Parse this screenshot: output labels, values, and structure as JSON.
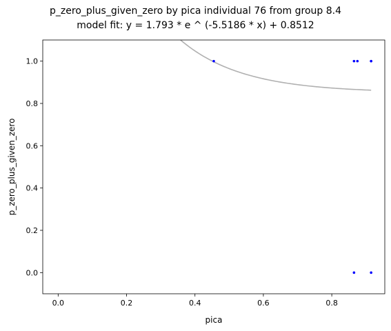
{
  "chart_data": {
    "type": "scatter",
    "title": "p_zero_plus_given_zero by pica individual 76 from group 8.4",
    "subtitle": "model fit: y = 1.793 * e ^ (-5.5186 * x) + 0.8512",
    "xlabel": "pica",
    "ylabel": "p_zero_plus_given_zero",
    "xlim": [
      -0.045,
      0.955
    ],
    "ylim": [
      -0.1,
      1.1
    ],
    "x_ticks": [
      "0.0",
      "0.2",
      "0.4",
      "0.6",
      "0.8"
    ],
    "x_tick_values": [
      0.0,
      0.2,
      0.4,
      0.6,
      0.8
    ],
    "y_ticks": [
      "0.0",
      "0.2",
      "0.4",
      "0.6",
      "0.8",
      "1.0"
    ],
    "y_tick_values": [
      0.0,
      0.2,
      0.4,
      0.6,
      0.8,
      1.0
    ],
    "grid": false,
    "points": [
      {
        "x": 0.455,
        "y": 1.0
      },
      {
        "x": 0.865,
        "y": 1.0
      },
      {
        "x": 0.875,
        "y": 1.0
      },
      {
        "x": 0.915,
        "y": 1.0
      },
      {
        "x": 0.915,
        "y": 1.0
      },
      {
        "x": 0.865,
        "y": 0.0
      },
      {
        "x": 0.915,
        "y": 0.0
      }
    ],
    "point_color": "#0000ff",
    "fit": {
      "a": 1.793,
      "b": -5.5186,
      "c": 0.8512,
      "x_range": [
        0.0,
        0.915
      ],
      "color": "#b0b0b0"
    }
  }
}
